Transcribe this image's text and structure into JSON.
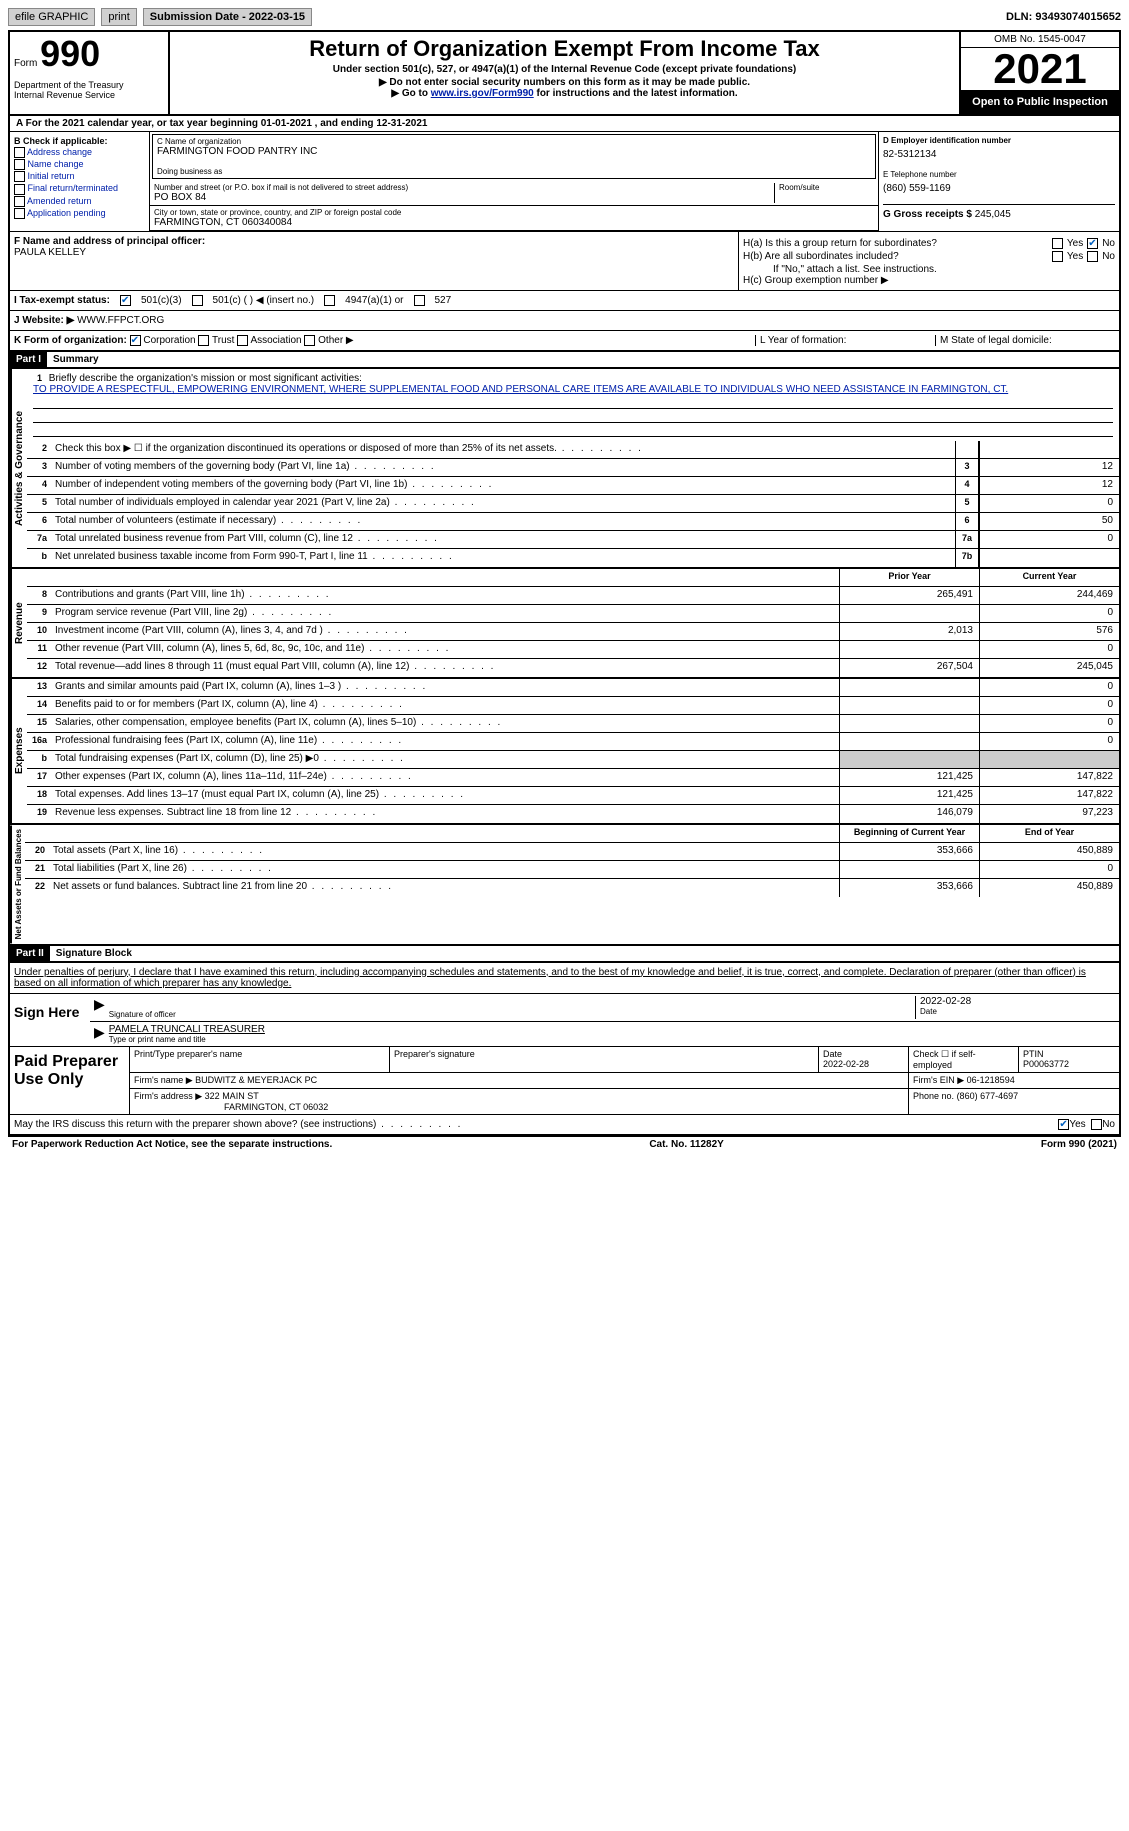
{
  "toolbar": {
    "efile": "efile GRAPHIC",
    "print": "print",
    "submission": "Submission Date - 2022-03-15",
    "dln": "DLN: 93493074015652"
  },
  "header": {
    "form_word": "Form",
    "form_num": "990",
    "title": "Return of Organization Exempt From Income Tax",
    "subtitle": "Under section 501(c), 527, or 4947(a)(1) of the Internal Revenue Code (except private foundations)",
    "note1": "▶ Do not enter social security numbers on this form as it may be made public.",
    "note2_pre": "▶ Go to ",
    "note2_link": "www.irs.gov/Form990",
    "note2_post": " for instructions and the latest information.",
    "dept": "Department of the Treasury\nInternal Revenue Service",
    "omb": "OMB No. 1545-0047",
    "year": "2021",
    "inspection": "Open to Public Inspection"
  },
  "period": "A For the 2021 calendar year, or tax year beginning 01-01-2021   , and ending 12-31-2021",
  "checkB": {
    "label": "B Check if applicable:",
    "opts": [
      "Address change",
      "Name change",
      "Initial return",
      "Final return/terminated",
      "Amended return",
      "Application pending"
    ]
  },
  "org": {
    "name_label": "C Name of organization",
    "name": "FARMINGTON FOOD PANTRY INC",
    "dba_label": "Doing business as",
    "addr_label": "Number and street (or P.O. box if mail is not delivered to street address)",
    "room_label": "Room/suite",
    "addr": "PO BOX 84",
    "city_label": "City or town, state or province, country, and ZIP or foreign postal code",
    "city": "FARMINGTON, CT  060340084"
  },
  "colD": {
    "ein_label": "D Employer identification number",
    "ein": "82-5312134",
    "phone_label": "E Telephone number",
    "phone": "(860) 559-1169",
    "gross_label": "G Gross receipts $",
    "gross": "245,045"
  },
  "officer": {
    "label": "F Name and address of principal officer:",
    "name": "PAULA KELLEY"
  },
  "h": {
    "a": "H(a)  Is this a group return for subordinates?",
    "b": "H(b)  Are all subordinates included?",
    "b_note": "If \"No,\" attach a list. See instructions.",
    "c": "H(c)  Group exemption number ▶",
    "yes": "Yes",
    "no": "No"
  },
  "status": {
    "label": "I   Tax-exempt status:",
    "o1": "501(c)(3)",
    "o2": "501(c) (  ) ◀ (insert no.)",
    "o3": "4947(a)(1) or",
    "o4": "527"
  },
  "website": {
    "label": "J   Website: ▶",
    "val": "WWW.FFPCT.ORG"
  },
  "k": {
    "label": "K Form of organization:",
    "corp": "Corporation",
    "trust": "Trust",
    "assoc": "Association",
    "other": "Other ▶",
    "l": "L Year of formation:",
    "m": "M State of legal domicile:"
  },
  "part1": {
    "num": "Part I",
    "title": "Summary"
  },
  "mission": {
    "num": "1",
    "label": "Briefly describe the organization's mission or most significant activities:",
    "text": "TO PROVIDE A RESPECTFUL, EMPOWERING ENVIRONMENT, WHERE SUPPLEMENTAL FOOD AND PERSONAL CARE ITEMS ARE AVAILABLE TO INDIVIDUALS WHO NEED ASSISTANCE IN FARMINGTON, CT."
  },
  "gov_lines": [
    {
      "n": "2",
      "t": "Check this box ▶ ☐ if the organization discontinued its operations or disposed of more than 25% of its net assets.",
      "box": "",
      "v": ""
    },
    {
      "n": "3",
      "t": "Number of voting members of the governing body (Part VI, line 1a)",
      "box": "3",
      "v": "12"
    },
    {
      "n": "4",
      "t": "Number of independent voting members of the governing body (Part VI, line 1b)",
      "box": "4",
      "v": "12"
    },
    {
      "n": "5",
      "t": "Total number of individuals employed in calendar year 2021 (Part V, line 2a)",
      "box": "5",
      "v": "0"
    },
    {
      "n": "6",
      "t": "Total number of volunteers (estimate if necessary)",
      "box": "6",
      "v": "50"
    },
    {
      "n": "7a",
      "t": "Total unrelated business revenue from Part VIII, column (C), line 12",
      "box": "7a",
      "v": "0"
    },
    {
      "n": "b",
      "t": "Net unrelated business taxable income from Form 990-T, Part I, line 11",
      "box": "7b",
      "v": ""
    }
  ],
  "side_labels": {
    "gov": "Activities & Governance",
    "rev": "Revenue",
    "exp": "Expenses",
    "net": "Net Assets or Fund Balances"
  },
  "col_headers": {
    "prior": "Prior Year",
    "current": "Current Year",
    "begin": "Beginning of Current Year",
    "end": "End of Year"
  },
  "rev_lines": [
    {
      "n": "8",
      "t": "Contributions and grants (Part VIII, line 1h)",
      "p": "265,491",
      "c": "244,469"
    },
    {
      "n": "9",
      "t": "Program service revenue (Part VIII, line 2g)",
      "p": "",
      "c": "0"
    },
    {
      "n": "10",
      "t": "Investment income (Part VIII, column (A), lines 3, 4, and 7d )",
      "p": "2,013",
      "c": "576"
    },
    {
      "n": "11",
      "t": "Other revenue (Part VIII, column (A), lines 5, 6d, 8c, 9c, 10c, and 11e)",
      "p": "",
      "c": "0"
    },
    {
      "n": "12",
      "t": "Total revenue—add lines 8 through 11 (must equal Part VIII, column (A), line 12)",
      "p": "267,504",
      "c": "245,045"
    }
  ],
  "exp_lines": [
    {
      "n": "13",
      "t": "Grants and similar amounts paid (Part IX, column (A), lines 1–3 )",
      "p": "",
      "c": "0"
    },
    {
      "n": "14",
      "t": "Benefits paid to or for members (Part IX, column (A), line 4)",
      "p": "",
      "c": "0"
    },
    {
      "n": "15",
      "t": "Salaries, other compensation, employee benefits (Part IX, column (A), lines 5–10)",
      "p": "",
      "c": "0"
    },
    {
      "n": "16a",
      "t": "Professional fundraising fees (Part IX, column (A), line 11e)",
      "p": "",
      "c": "0"
    },
    {
      "n": "b",
      "t": "Total fundraising expenses (Part IX, column (D), line 25) ▶0",
      "p": "shade",
      "c": "shade"
    },
    {
      "n": "17",
      "t": "Other expenses (Part IX, column (A), lines 11a–11d, 11f–24e)",
      "p": "121,425",
      "c": "147,822"
    },
    {
      "n": "18",
      "t": "Total expenses. Add lines 13–17 (must equal Part IX, column (A), line 25)",
      "p": "121,425",
      "c": "147,822"
    },
    {
      "n": "19",
      "t": "Revenue less expenses. Subtract line 18 from line 12",
      "p": "146,079",
      "c": "97,223"
    }
  ],
  "net_lines": [
    {
      "n": "20",
      "t": "Total assets (Part X, line 16)",
      "p": "353,666",
      "c": "450,889"
    },
    {
      "n": "21",
      "t": "Total liabilities (Part X, line 26)",
      "p": "",
      "c": "0"
    },
    {
      "n": "22",
      "t": "Net assets or fund balances. Subtract line 21 from line 20",
      "p": "353,666",
      "c": "450,889"
    }
  ],
  "part2": {
    "num": "Part II",
    "title": "Signature Block"
  },
  "penalty": "Under penalties of perjury, I declare that I have examined this return, including accompanying schedules and statements, and to the best of my knowledge and belief, it is true, correct, and complete. Declaration of preparer (other than officer) is based on all information of which preparer has any knowledge.",
  "sign": {
    "here": "Sign Here",
    "sig_label": "Signature of officer",
    "date_label": "Date",
    "date": "2022-02-28",
    "name": "PAMELA TRUNCALI TREASURER",
    "name_label": "Type or print name and title"
  },
  "prep": {
    "title": "Paid Preparer Use Only",
    "h1": "Print/Type preparer's name",
    "h2": "Preparer's signature",
    "h3": "Date",
    "date": "2022-02-28",
    "h4": "Check ☐ if self-employed",
    "h5": "PTIN",
    "ptin": "P00063772",
    "firm_label": "Firm's name    ▶",
    "firm": "BUDWITZ & MEYERJACK PC",
    "ein_label": "Firm's EIN ▶",
    "ein": "06-1218594",
    "addr_label": "Firm's address ▶",
    "addr1": "322 MAIN ST",
    "addr2": "FARMINGTON, CT  06032",
    "phone_label": "Phone no.",
    "phone": "(860) 677-4697"
  },
  "discuss": "May the IRS discuss this return with the preparer shown above? (see instructions)",
  "footer": {
    "left": "For Paperwork Reduction Act Notice, see the separate instructions.",
    "mid": "Cat. No. 11282Y",
    "right": "Form 990 (2021)"
  }
}
